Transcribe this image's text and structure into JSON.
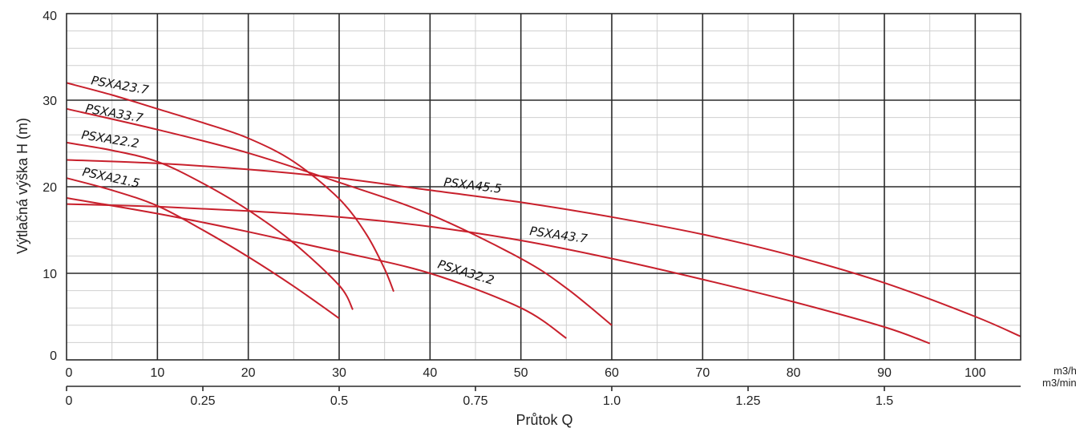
{
  "chart_data": {
    "type": "line",
    "title": "",
    "xlabel": "Průtok Q",
    "ylabel": "Výtlačná výška H (m)",
    "x_unit": "m3/h",
    "x2_unit": "m3/min",
    "xlim": [
      0,
      105
    ],
    "ylim": [
      0,
      40
    ],
    "x_ticks": [
      "0",
      "10",
      "20",
      "30",
      "40",
      "50",
      "60",
      "70",
      "80",
      "90",
      "100"
    ],
    "x2_ticks": [
      "0",
      "0.25",
      "0.5",
      "0.75",
      "1.0",
      "1.25",
      "1.5"
    ],
    "y_ticks": [
      "0",
      "10",
      "20",
      "30",
      "40"
    ],
    "grid": true,
    "line_color": "#c8202c",
    "series": [
      {
        "name": "PSXA23.7",
        "x": [
          0,
          5,
          10,
          15,
          20,
          25,
          30,
          33,
          35,
          36
        ],
        "y": [
          32,
          30.6,
          29.0,
          27.4,
          25.6,
          22.9,
          18.6,
          14.5,
          10.5,
          7.9
        ]
      },
      {
        "name": "PSXA33.7",
        "x": [
          0,
          10,
          20,
          30,
          40,
          50,
          55,
          60
        ],
        "y": [
          29,
          26.6,
          23.9,
          20.5,
          16.8,
          11.7,
          8.3,
          4.0
        ]
      },
      {
        "name": "PSXA22.2",
        "x": [
          0,
          5,
          10,
          15,
          20,
          25,
          30,
          31.5
        ],
        "y": [
          25.1,
          24.2,
          22.9,
          20.4,
          17.3,
          13.5,
          8.6,
          5.8
        ]
      },
      {
        "name": "PSXA21.5",
        "x": [
          0,
          5,
          10,
          15,
          20,
          25,
          30
        ],
        "y": [
          21,
          19.6,
          17.8,
          15.0,
          11.9,
          8.5,
          4.8
        ]
      },
      {
        "name": "PSXA45.5",
        "x": [
          0,
          10,
          20,
          30,
          40,
          50,
          60,
          70,
          80,
          90,
          100,
          105
        ],
        "y": [
          23.1,
          22.7,
          22.0,
          21.0,
          19.6,
          18.2,
          16.5,
          14.5,
          12.0,
          8.9,
          5.0,
          2.7
        ]
      },
      {
        "name": "PSXA43.7",
        "x": [
          0,
          10,
          20,
          30,
          40,
          50,
          60,
          70,
          80,
          90,
          95
        ],
        "y": [
          18.0,
          17.7,
          17.2,
          16.5,
          15.4,
          13.8,
          11.7,
          9.3,
          6.7,
          3.8,
          1.9
        ]
      },
      {
        "name": "PSXA32.2",
        "x": [
          0,
          10,
          20,
          30,
          40,
          50,
          55
        ],
        "y": [
          18.7,
          16.9,
          14.8,
          12.5,
          10.0,
          6.0,
          2.5
        ]
      }
    ]
  }
}
